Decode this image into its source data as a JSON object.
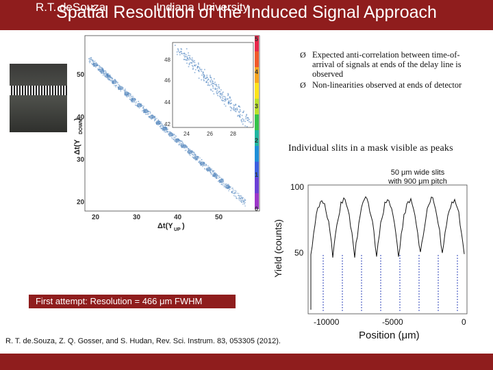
{
  "slide": {
    "title": "Spatial Resolution of the Induced Signal Approach",
    "bullets": [
      "Expected anti-correlation between time-of-arrival of signals at ends of the delay line is observed",
      "Non-linearities observed at ends of detector"
    ],
    "slits_note": "Individual slits in a mask visible as peaks",
    "caption": "First attempt: Resolution = 466 μm FWHM",
    "reference": "R. T. de.Souza, Z. Q. Gosser, and S. Hudan, Rev. Sci. Instrum. 83, 053305 (2012).",
    "footer_left": "R.T. deSouza",
    "footer_right": "Indiana University",
    "bullet_glyph": "Ø"
  },
  "scatter_plot": {
    "y_ticks": [
      "20",
      "30",
      "40",
      "50"
    ],
    "x_ticks": [
      "20",
      "30",
      "40",
      "50"
    ],
    "color_scale_ticks": [
      "0",
      "1",
      "2",
      "3",
      "4",
      "5"
    ],
    "inset_y_ticks": [
      "42",
      "44",
      "46",
      "48"
    ],
    "inset_x_ticks": [
      "24",
      "26",
      "28"
    ]
  },
  "yield_plot": {
    "ylabel": "Yield (counts)",
    "xlabel": "Position (μm)",
    "annotation_line1": "50 μm wide slits",
    "annotation_line2": "with 900 μm pitch",
    "y_ticks": [
      "50",
      "100"
    ],
    "x_ticks": [
      "-10000",
      "-5000",
      "0"
    ]
  },
  "colors": {
    "brand": "#8f1d1d",
    "scatter_blue": "#5b8ec4"
  }
}
